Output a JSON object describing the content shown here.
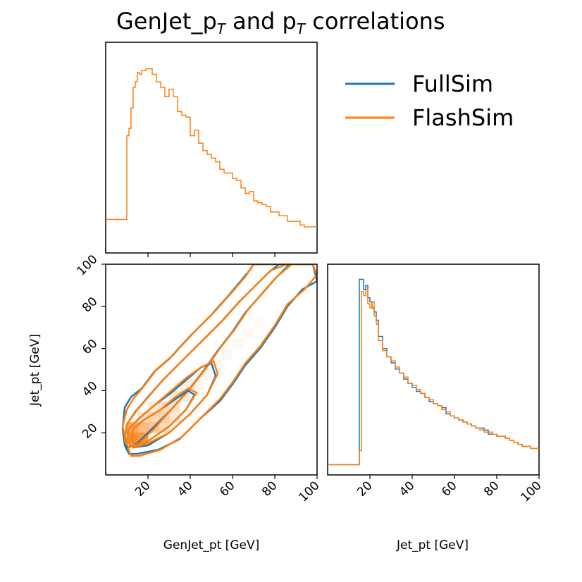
{
  "chart_data": {
    "type": "corner-plot",
    "title": "GenJet_p",
    "title_sub": "T",
    "title_mid": " and p",
    "title_sub2": "T",
    "title_end": " correlations",
    "series_colors": {
      "FullSim": "#1f77b4",
      "FlashSim": "#ff7f0e"
    },
    "legend": [
      "FullSim",
      "FlashSim"
    ],
    "xlabel": "GenJet_pt [GeV]",
    "ylabel": "Jet_pt [GeV]",
    "xlabel_right": "Jet_pt [GeV]",
    "xlim": [
      0,
      100
    ],
    "ylim": [
      0,
      100
    ],
    "ticks_left": [
      "20",
      "40",
      "60",
      "80",
      "100"
    ],
    "ticks_bottom": [
      "20",
      "40",
      "60",
      "80",
      "100"
    ],
    "ticks_bottom_right": [
      "20",
      "40",
      "60",
      "80",
      "100"
    ],
    "top_hist": {
      "xlabel": "GenJet_pt",
      "bin_edges": [
        0,
        10,
        11,
        12,
        13,
        14,
        15,
        16,
        17,
        18,
        19,
        20,
        22,
        24,
        26,
        28,
        30,
        32,
        34,
        36,
        38,
        40,
        42,
        44,
        46,
        48,
        50,
        52,
        54,
        56,
        58,
        60,
        62,
        64,
        66,
        68,
        70,
        72,
        74,
        76,
        78,
        80,
        82,
        84,
        86,
        88,
        90,
        92,
        94,
        96,
        98,
        100
      ],
      "heights": [
        0.18,
        0.63,
        0.67,
        0.78,
        0.89,
        0.92,
        0.97,
        0.96,
        0.98,
        0.98,
        0.99,
        0.99,
        0.96,
        0.92,
        0.89,
        0.84,
        0.88,
        0.84,
        0.76,
        0.74,
        0.73,
        0.63,
        0.66,
        0.59,
        0.55,
        0.53,
        0.51,
        0.49,
        0.45,
        0.43,
        0.43,
        0.4,
        0.39,
        0.35,
        0.32,
        0.33,
        0.28,
        0.27,
        0.26,
        0.25,
        0.22,
        0.22,
        0.2,
        0.2,
        0.17,
        0.17,
        0.17,
        0.15,
        0.14,
        0.14,
        0.14
      ]
    },
    "right_hist": {
      "xlabel": "Jet_pt",
      "bin_edges": [
        0,
        15,
        16,
        17,
        18,
        19,
        20,
        21,
        22,
        23,
        24,
        26,
        28,
        30,
        32,
        34,
        36,
        38,
        40,
        42,
        44,
        46,
        48,
        50,
        52,
        54,
        56,
        58,
        60,
        62,
        64,
        66,
        68,
        70,
        72,
        74,
        76,
        78,
        80,
        82,
        84,
        86,
        88,
        90,
        92,
        94,
        96,
        98,
        100
      ],
      "fullsim": [
        0.05,
        0.96,
        0.96,
        0.91,
        0.93,
        0.87,
        0.85,
        0.82,
        0.8,
        0.76,
        0.68,
        0.62,
        0.58,
        0.55,
        0.52,
        0.5,
        0.47,
        0.45,
        0.43,
        0.41,
        0.4,
        0.38,
        0.36,
        0.35,
        0.34,
        0.33,
        0.3,
        0.29,
        0.28,
        0.27,
        0.26,
        0.25,
        0.24,
        0.23,
        0.23,
        0.22,
        0.2,
        0.2,
        0.19,
        0.19,
        0.18,
        0.17,
        0.16,
        0.15,
        0.14,
        0.14,
        0.13,
        0.13
      ],
      "flashsim": [
        0.05,
        0.12,
        0.9,
        0.88,
        0.91,
        0.84,
        0.82,
        0.85,
        0.78,
        0.74,
        0.66,
        0.61,
        0.58,
        0.56,
        0.53,
        0.5,
        0.48,
        0.45,
        0.44,
        0.42,
        0.4,
        0.38,
        0.37,
        0.35,
        0.34,
        0.32,
        0.31,
        0.29,
        0.28,
        0.27,
        0.26,
        0.25,
        0.24,
        0.23,
        0.22,
        0.21,
        0.21,
        0.2,
        0.19,
        0.19,
        0.18,
        0.17,
        0.16,
        0.15,
        0.14,
        0.14,
        0.13,
        0.13
      ]
    },
    "contours": {
      "levels": [
        {
          "name": "outer",
          "fullsim": [
            [
              9,
              14
            ],
            [
              8,
              22
            ],
            [
              9,
              32
            ],
            [
              12,
              37
            ],
            [
              17,
              41
            ],
            [
              23,
              49
            ],
            [
              30,
              55
            ],
            [
              40,
              66
            ],
            [
              50,
              76
            ],
            [
              58,
              85
            ],
            [
              63,
              91
            ],
            [
              68,
              97
            ],
            [
              70,
              100
            ],
            [
              98,
              100
            ],
            [
              100,
              92
            ],
            [
              93,
              88
            ],
            [
              86,
              80
            ],
            [
              80,
              70
            ],
            [
              73,
              60
            ],
            [
              66,
              52
            ],
            [
              60,
              43
            ],
            [
              54,
              35
            ],
            [
              45,
              27
            ],
            [
              35,
              17
            ],
            [
              25,
              12
            ],
            [
              15,
              10
            ],
            [
              11,
              10
            ],
            [
              9,
              14
            ]
          ],
          "flashsim": [
            [
              10,
              14
            ],
            [
              8,
              23
            ],
            [
              10,
              31
            ],
            [
              13,
              36
            ],
            [
              18,
              42
            ],
            [
              24,
              50
            ],
            [
              32,
              57
            ],
            [
              42,
              68
            ],
            [
              52,
              78
            ],
            [
              60,
              87
            ],
            [
              66,
              94
            ],
            [
              70,
              100
            ],
            [
              98,
              100
            ],
            [
              100,
              95
            ],
            [
              94,
              88
            ],
            [
              86,
              81
            ],
            [
              80,
              71
            ],
            [
              73,
              61
            ],
            [
              66,
              53
            ],
            [
              60,
              44
            ],
            [
              54,
              36
            ],
            [
              46,
              28
            ],
            [
              36,
              18
            ],
            [
              26,
              12
            ],
            [
              16,
              9
            ],
            [
              12,
              9
            ],
            [
              10,
              14
            ]
          ]
        },
        {
          "name": "mid",
          "fullsim": [
            [
              9,
              16
            ],
            [
              10,
              24
            ],
            [
              14,
              30
            ],
            [
              20,
              37
            ],
            [
              27,
              45
            ],
            [
              35,
              53
            ],
            [
              45,
              63
            ],
            [
              55,
              73
            ],
            [
              63,
              82
            ],
            [
              70,
              89
            ],
            [
              77,
              96
            ],
            [
              82,
              100
            ],
            [
              87,
              100
            ],
            [
              80,
              93
            ],
            [
              73,
              85
            ],
            [
              66,
              77
            ],
            [
              60,
              68
            ],
            [
              53,
              59
            ],
            [
              46,
              49
            ],
            [
              39,
              40
            ],
            [
              30,
              30
            ],
            [
              22,
              22
            ],
            [
              15,
              15
            ],
            [
              10,
              13
            ],
            [
              9,
              16
            ]
          ],
          "flashsim": [
            [
              9,
              16
            ],
            [
              10,
              24
            ],
            [
              15,
              31
            ],
            [
              21,
              38
            ],
            [
              28,
              46
            ],
            [
              36,
              54
            ],
            [
              46,
              64
            ],
            [
              56,
              74
            ],
            [
              64,
              83
            ],
            [
              71,
              90
            ],
            [
              78,
              97
            ],
            [
              86,
              100
            ],
            [
              88,
              100
            ],
            [
              81,
              94
            ],
            [
              74,
              86
            ],
            [
              67,
              78
            ],
            [
              61,
              69
            ],
            [
              54,
              60
            ],
            [
              47,
              50
            ],
            [
              40,
              41
            ],
            [
              31,
              31
            ],
            [
              23,
              22
            ],
            [
              16,
              15
            ],
            [
              11,
              13
            ],
            [
              9,
              16
            ]
          ]
        },
        {
          "name": "inner",
          "fullsim": [
            [
              10,
              16
            ],
            [
              11,
              22
            ],
            [
              16,
              27
            ],
            [
              23,
              33
            ],
            [
              31,
              39
            ],
            [
              38,
              45
            ],
            [
              45,
              51
            ],
            [
              50,
              53
            ],
            [
              52,
              47
            ],
            [
              48,
              38
            ],
            [
              40,
              29
            ],
            [
              30,
              20
            ],
            [
              20,
              14
            ],
            [
              13,
              13
            ],
            [
              10,
              16
            ]
          ],
          "flashsim": [
            [
              10,
              16
            ],
            [
              11,
              22
            ],
            [
              16,
              27
            ],
            [
              23,
              33
            ],
            [
              31,
              40
            ],
            [
              38,
              46
            ],
            [
              45,
              51
            ],
            [
              51,
              54
            ],
            [
              53,
              48
            ],
            [
              48,
              38
            ],
            [
              40,
              29
            ],
            [
              30,
              20
            ],
            [
              20,
              15
            ],
            [
              13,
              13
            ],
            [
              10,
              16
            ]
          ]
        },
        {
          "name": "core",
          "fullsim": [
            [
              12,
              16
            ],
            [
              13,
              22
            ],
            [
              18,
              26
            ],
            [
              26,
              31
            ],
            [
              33,
              36
            ],
            [
              39,
              40
            ],
            [
              42,
              38
            ],
            [
              38,
              31
            ],
            [
              30,
              23
            ],
            [
              20,
              16
            ],
            [
              14,
              14
            ],
            [
              12,
              16
            ]
          ],
          "flashsim": [
            [
              12,
              16
            ],
            [
              13,
              22
            ],
            [
              18,
              26
            ],
            [
              26,
              31
            ],
            [
              33,
              37
            ],
            [
              39,
              41
            ],
            [
              43,
              39
            ],
            [
              38,
              31
            ],
            [
              30,
              23
            ],
            [
              20,
              16
            ],
            [
              14,
              14
            ],
            [
              12,
              16
            ]
          ]
        }
      ]
    },
    "heatmap_cells": [
      {
        "x": 10,
        "y": 15,
        "v": 1.0
      },
      {
        "x": 10,
        "y": 20,
        "v": 0.75
      },
      {
        "x": 15,
        "y": 15,
        "v": 0.9
      },
      {
        "x": 15,
        "y": 20,
        "v": 0.6
      },
      {
        "x": 20,
        "y": 20,
        "v": 0.5
      },
      {
        "x": 20,
        "y": 25,
        "v": 0.35
      },
      {
        "x": 25,
        "y": 25,
        "v": 0.4
      },
      {
        "x": 25,
        "y": 30,
        "v": 0.3
      },
      {
        "x": 30,
        "y": 30,
        "v": 0.25
      },
      {
        "x": 30,
        "y": 35,
        "v": 0.2
      },
      {
        "x": 35,
        "y": 35,
        "v": 0.18
      },
      {
        "x": 35,
        "y": 40,
        "v": 0.15
      },
      {
        "x": 40,
        "y": 40,
        "v": 0.12
      },
      {
        "x": 40,
        "y": 45,
        "v": 0.1
      },
      {
        "x": 45,
        "y": 45,
        "v": 0.08
      },
      {
        "x": 50,
        "y": 50,
        "v": 0.07
      },
      {
        "x": 55,
        "y": 55,
        "v": 0.06
      },
      {
        "x": 60,
        "y": 60,
        "v": 0.05
      },
      {
        "x": 65,
        "y": 65,
        "v": 0.04
      },
      {
        "x": 70,
        "y": 70,
        "v": 0.03
      },
      {
        "x": 15,
        "y": 25,
        "v": 0.25
      },
      {
        "x": 20,
        "y": 30,
        "v": 0.15
      },
      {
        "x": 25,
        "y": 20,
        "v": 0.3
      },
      {
        "x": 30,
        "y": 25,
        "v": 0.2
      }
    ]
  }
}
